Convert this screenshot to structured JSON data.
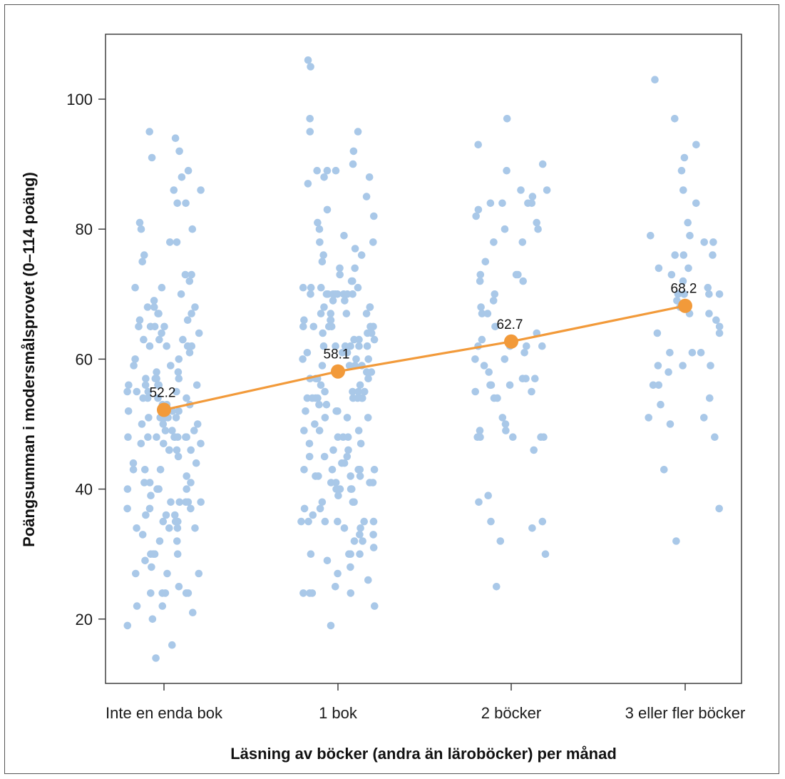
{
  "chart_data": {
    "type": "scatter",
    "title": "",
    "xlabel": "Läsning av böcker (andra än läroböcker) per månad",
    "ylabel": "Poängsumman i modersmålsprovet (0–114 poäng)",
    "categories": [
      "Inte en enda bok",
      "1 bok",
      "2 böcker",
      "3 eller fler böcker"
    ],
    "ylim": [
      10,
      110
    ],
    "yticks": [
      20,
      40,
      60,
      80,
      100
    ],
    "grid": false,
    "colors": {
      "points": "#a9c8e8",
      "mean": "#f29a3a",
      "axis": "#333333"
    },
    "series": [
      {
        "name": "Inte en enda bok",
        "values": [
          94,
          95,
          86,
          86,
          84,
          78,
          81,
          80,
          92,
          89,
          88,
          91,
          84,
          80,
          78,
          76,
          75,
          73,
          73,
          72,
          71,
          71,
          70,
          69,
          68,
          68,
          68,
          67,
          67,
          67,
          66,
          66,
          65,
          65,
          65,
          65,
          64,
          64,
          63,
          63,
          63,
          62,
          62,
          62,
          62,
          61,
          60,
          60,
          59,
          59,
          58,
          58,
          57,
          57,
          57,
          57,
          56,
          56,
          56,
          56,
          56,
          55,
          55,
          55,
          55,
          54,
          54,
          54,
          54,
          53,
          53,
          53,
          52,
          52,
          52,
          51,
          51,
          51,
          51,
          51,
          50,
          50,
          50,
          49,
          49,
          49,
          48,
          48,
          48,
          48,
          48,
          48,
          48,
          48,
          47,
          47,
          47,
          46,
          46,
          46,
          46,
          45,
          44,
          44,
          43,
          43,
          43,
          42,
          41,
          41,
          41,
          40,
          40,
          40,
          40,
          39,
          38,
          38,
          38,
          38,
          38,
          37,
          37,
          37,
          36,
          36,
          36,
          35,
          35,
          35,
          35,
          34,
          34,
          34,
          34,
          33,
          32,
          32,
          30,
          30,
          30,
          30,
          29,
          28,
          27,
          27,
          27,
          25,
          24,
          24,
          24,
          24,
          24,
          22,
          22,
          21,
          20,
          19,
          16,
          14
        ]
      },
      {
        "name": "1 bok",
        "values": [
          106,
          105,
          97,
          95,
          95,
          92,
          90,
          89,
          89,
          89,
          88,
          88,
          87,
          85,
          83,
          82,
          81,
          80,
          79,
          78,
          78,
          77,
          76,
          76,
          75,
          74,
          74,
          73,
          72,
          72,
          71,
          71,
          71,
          71,
          70,
          70,
          70,
          70,
          70,
          70,
          70,
          70,
          70,
          69,
          69,
          68,
          68,
          68,
          67,
          67,
          67,
          67,
          66,
          66,
          66,
          65,
          65,
          65,
          65,
          65,
          65,
          64,
          64,
          64,
          63,
          63,
          63,
          62,
          62,
          62,
          62,
          62,
          62,
          61,
          61,
          61,
          60,
          60,
          60,
          59,
          59,
          59,
          59,
          58,
          58,
          58,
          57,
          57,
          57,
          57,
          56,
          56,
          55,
          55,
          55,
          55,
          54,
          54,
          54,
          54,
          54,
          54,
          54,
          54,
          53,
          53,
          52,
          52,
          52,
          51,
          51,
          51,
          50,
          49,
          49,
          49,
          48,
          48,
          48,
          47,
          47,
          46,
          46,
          45,
          45,
          45,
          44,
          44,
          43,
          43,
          43,
          43,
          43,
          42,
          42,
          42,
          42,
          41,
          41,
          41,
          41,
          40,
          40,
          40,
          40,
          39,
          38,
          38,
          38,
          37,
          37,
          36,
          35,
          35,
          35,
          35,
          35,
          35,
          34,
          34,
          33,
          33,
          32,
          32,
          31,
          30,
          30,
          30,
          30,
          29,
          28,
          27,
          26,
          25,
          24,
          24,
          24,
          24,
          22,
          19
        ]
      },
      {
        "name": "2 böcker",
        "values": [
          97,
          93,
          90,
          89,
          86,
          86,
          85,
          84,
          84,
          84,
          84,
          83,
          82,
          81,
          80,
          80,
          78,
          78,
          75,
          73,
          73,
          73,
          72,
          72,
          70,
          69,
          68,
          67,
          67,
          65,
          64,
          63,
          62,
          62,
          62,
          62,
          61,
          60,
          60,
          59,
          58,
          57,
          57,
          57,
          56,
          56,
          56,
          55,
          55,
          54,
          54,
          51,
          50,
          49,
          49,
          48,
          48,
          48,
          48,
          48,
          46,
          39,
          38,
          35,
          35,
          34,
          32,
          30,
          25
        ]
      },
      {
        "name": "3 eller fler böcker",
        "values": [
          103,
          97,
          93,
          91,
          89,
          86,
          84,
          81,
          79,
          79,
          78,
          78,
          76,
          76,
          76,
          74,
          74,
          73,
          72,
          71,
          70,
          70,
          70,
          70,
          70,
          69,
          68,
          67,
          67,
          66,
          65,
          64,
          64,
          61,
          61,
          61,
          59,
          59,
          59,
          58,
          56,
          56,
          54,
          53,
          51,
          51,
          50,
          48,
          43,
          37,
          32
        ]
      }
    ],
    "means": [
      52.2,
      58.1,
      62.7,
      68.2
    ],
    "mean_labels": [
      "52.2",
      "58.1",
      "62.7",
      "68.2"
    ]
  }
}
